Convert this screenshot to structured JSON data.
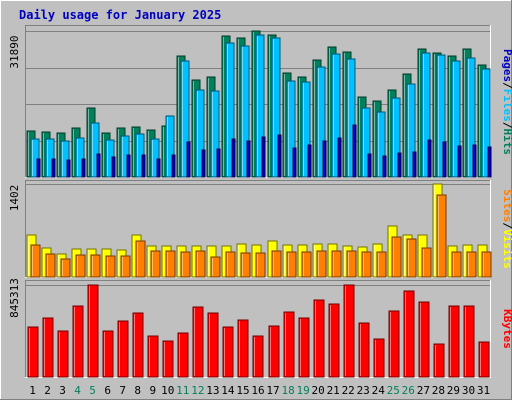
{
  "title": "Daily usage for January 2025",
  "colors": {
    "background": "#c0c0c0",
    "title_text": "#0000c0",
    "hits": "#00805c",
    "files": "#00c0ff",
    "pages": "#0000c0",
    "visits": "#ffff00",
    "sites": "#ff8000",
    "kbytes": "#ff0000",
    "weekend_label": "#00805c",
    "day_label": "#000000"
  },
  "chart_data": [
    {
      "type": "bar",
      "panel": "hits-files-pages",
      "y_max_label": "31890",
      "ylim": [
        0,
        31890
      ],
      "grid": true,
      "legend": [
        {
          "label": "Pages",
          "color": "#0000c0"
        },
        {
          "label": "/",
          "color": "#000000"
        },
        {
          "label": "Files",
          "color": "#00c0ff"
        },
        {
          "label": "/",
          "color": "#000000"
        },
        {
          "label": "Hits",
          "color": "#00805c"
        }
      ],
      "categories": [
        "1",
        "2",
        "3",
        "4",
        "5",
        "6",
        "7",
        "8",
        "9",
        "10",
        "11",
        "12",
        "13",
        "14",
        "15",
        "16",
        "17",
        "18",
        "19",
        "20",
        "21",
        "22",
        "23",
        "24",
        "25",
        "26",
        "27",
        "28",
        "29",
        "30",
        "31"
      ],
      "series": [
        {
          "name": "Hits",
          "values": [
            10100,
            9800,
            9700,
            10800,
            15100,
            9600,
            10700,
            11000,
            10200,
            11200,
            26400,
            21100,
            21800,
            30700,
            30300,
            31890,
            31000,
            22700,
            21800,
            25600,
            28400,
            27300,
            17400,
            16700,
            18900,
            22600,
            27900,
            27100,
            26500,
            27900,
            24500
          ]
        },
        {
          "name": "Files",
          "values": [
            8300,
            8200,
            7900,
            8600,
            11700,
            8000,
            8900,
            9300,
            8300,
            13400,
            25400,
            18900,
            18800,
            29200,
            28700,
            31100,
            30400,
            20900,
            20700,
            24000,
            26900,
            25800,
            15000,
            14200,
            17300,
            20400,
            27000,
            26600,
            25400,
            26000,
            23500
          ]
        },
        {
          "name": "Pages",
          "values": [
            4000,
            3900,
            3700,
            3900,
            5000,
            4400,
            4900,
            4900,
            4000,
            4800,
            7600,
            5900,
            6200,
            8400,
            7900,
            8700,
            9200,
            6400,
            7000,
            7800,
            8600,
            11300,
            5000,
            4500,
            5200,
            5500,
            8100,
            7600,
            6700,
            6900,
            6500
          ]
        }
      ]
    },
    {
      "type": "bar",
      "panel": "visits-sites",
      "y_max_label": "1402",
      "ylim": [
        0,
        1402
      ],
      "legend": [
        {
          "label": "Sites",
          "color": "#ff8000"
        },
        {
          "label": "/",
          "color": "#000000"
        },
        {
          "label": "Visits",
          "color": "#ffff00"
        }
      ],
      "categories": [
        "1",
        "2",
        "3",
        "4",
        "5",
        "6",
        "7",
        "8",
        "9",
        "10",
        "11",
        "12",
        "13",
        "14",
        "15",
        "16",
        "17",
        "18",
        "19",
        "20",
        "21",
        "22",
        "23",
        "24",
        "25",
        "26",
        "27",
        "28",
        "29",
        "30",
        "31"
      ],
      "series": [
        {
          "name": "Visits",
          "values": [
            640,
            440,
            350,
            420,
            420,
            420,
            400,
            640,
            460,
            460,
            460,
            470,
            470,
            460,
            500,
            480,
            540,
            480,
            480,
            490,
            490,
            470,
            450,
            500,
            770,
            640,
            630,
            1402,
            470,
            480,
            480
          ]
        },
        {
          "name": "Sites",
          "values": [
            480,
            350,
            270,
            330,
            330,
            320,
            310,
            550,
            390,
            390,
            380,
            390,
            300,
            370,
            360,
            360,
            390,
            370,
            380,
            390,
            390,
            390,
            380,
            380,
            600,
            570,
            440,
            1230,
            370,
            380,
            380
          ]
        }
      ]
    },
    {
      "type": "bar",
      "panel": "kbytes",
      "y_max_label": "845313",
      "ylim": [
        0,
        845313
      ],
      "legend": [
        {
          "label": "KBytes",
          "color": "#ff0000"
        }
      ],
      "categories": [
        "1",
        "2",
        "3",
        "4",
        "5",
        "6",
        "7",
        "8",
        "9",
        "10",
        "11",
        "12",
        "13",
        "14",
        "15",
        "16",
        "17",
        "18",
        "19",
        "20",
        "21",
        "22",
        "23",
        "24",
        "25",
        "26",
        "27",
        "28",
        "29",
        "30",
        "31"
      ],
      "series": [
        {
          "name": "KBytes",
          "values": [
            460000,
            540000,
            420000,
            650000,
            845313,
            420000,
            510000,
            590000,
            380000,
            330000,
            400000,
            640000,
            590000,
            460000,
            520000,
            380000,
            470000,
            600000,
            540000,
            710000,
            670000,
            845313,
            500000,
            350000,
            610000,
            790000,
            690000,
            300000,
            650000,
            650000,
            320000
          ]
        }
      ]
    }
  ],
  "x_axis": {
    "labels": [
      {
        "text": "1",
        "weekend": false
      },
      {
        "text": "2",
        "weekend": false
      },
      {
        "text": "3",
        "weekend": false
      },
      {
        "text": "4",
        "weekend": true
      },
      {
        "text": "5",
        "weekend": true
      },
      {
        "text": "6",
        "weekend": false
      },
      {
        "text": "7",
        "weekend": false
      },
      {
        "text": "8",
        "weekend": false
      },
      {
        "text": "9",
        "weekend": false
      },
      {
        "text": "10",
        "weekend": false
      },
      {
        "text": "11",
        "weekend": true
      },
      {
        "text": "12",
        "weekend": true
      },
      {
        "text": "13",
        "weekend": false
      },
      {
        "text": "14",
        "weekend": false
      },
      {
        "text": "15",
        "weekend": false
      },
      {
        "text": "16",
        "weekend": false
      },
      {
        "text": "17",
        "weekend": false
      },
      {
        "text": "18",
        "weekend": true
      },
      {
        "text": "19",
        "weekend": true
      },
      {
        "text": "20",
        "weekend": false
      },
      {
        "text": "21",
        "weekend": false
      },
      {
        "text": "22",
        "weekend": false
      },
      {
        "text": "23",
        "weekend": false
      },
      {
        "text": "24",
        "weekend": false
      },
      {
        "text": "25",
        "weekend": true
      },
      {
        "text": "26",
        "weekend": true
      },
      {
        "text": "27",
        "weekend": false
      },
      {
        "text": "28",
        "weekend": false
      },
      {
        "text": "29",
        "weekend": false
      },
      {
        "text": "30",
        "weekend": false
      },
      {
        "text": "31",
        "weekend": false
      }
    ]
  }
}
